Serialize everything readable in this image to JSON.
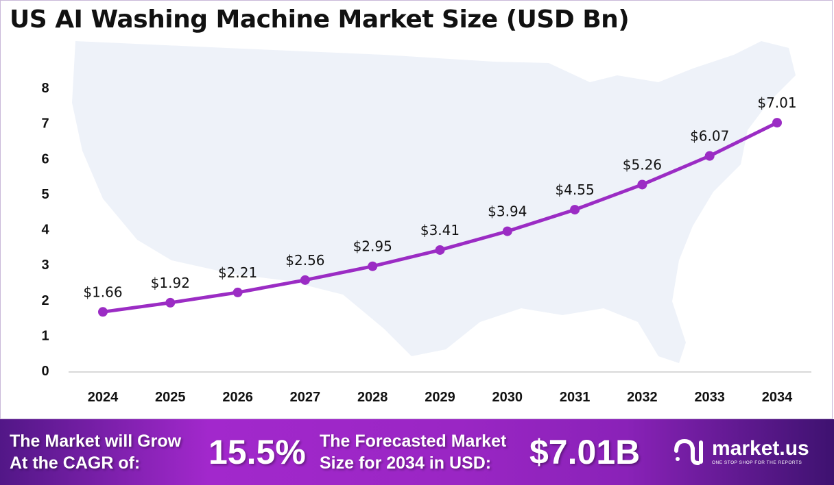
{
  "chart_data": {
    "type": "line",
    "title": "US AI Washing Machine Market Size (USD Bn)",
    "categories": [
      "2024",
      "2025",
      "2026",
      "2027",
      "2028",
      "2029",
      "2030",
      "2031",
      "2032",
      "2033",
      "2034"
    ],
    "values": [
      1.66,
      1.92,
      2.21,
      2.56,
      2.95,
      3.41,
      3.94,
      4.55,
      5.26,
      6.07,
      7.01
    ],
    "data_labels": [
      "$1.66",
      "$1.92",
      "$2.21",
      "$2.56",
      "$2.95",
      "$3.41",
      "$3.94",
      "$4.55",
      "$5.26",
      "$6.07",
      "$7.01"
    ],
    "yticks": [
      "0",
      "1",
      "2",
      "3",
      "4",
      "5",
      "6",
      "7",
      "8"
    ],
    "ylim": [
      0,
      8
    ],
    "grid": false,
    "line_color": "#9b2cc4",
    "background_image": "us-map-silhouette"
  },
  "footer": {
    "cagr_label": "The Market will Grow At the CAGR of:",
    "cagr_value": "15.5%",
    "forecast_label": "The Forecasted Market Size for 2034 in USD:",
    "forecast_value": "$7.01B",
    "logo_name": "market.us",
    "logo_tagline": "ONE STOP SHOP FOR THE REPORTS"
  }
}
